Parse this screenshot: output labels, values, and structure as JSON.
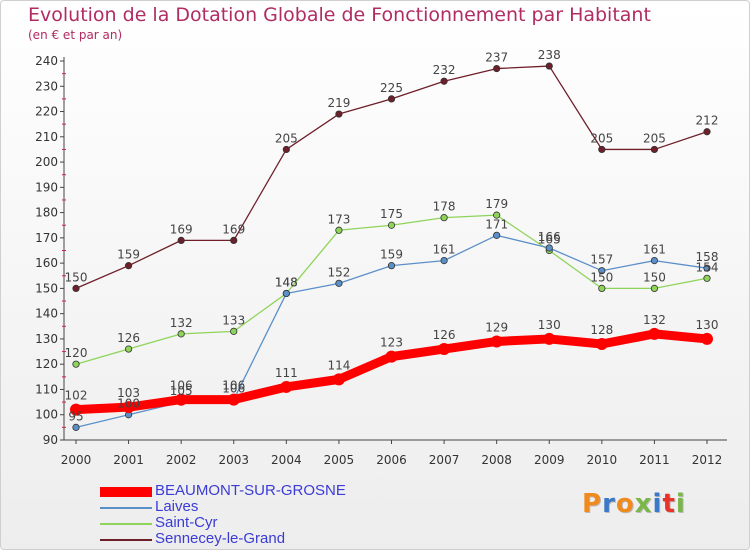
{
  "header": {
    "title": "Evolution de la Dotation Globale de Fonctionnement par Habitant",
    "subtitle": "(en € et par an)"
  },
  "logo": {
    "text": "Proxiti",
    "colors": [
      "#f08a1c",
      "#3a78c8",
      "#f08a1c",
      "#7ab648",
      "#3a78c8",
      "#e8332a",
      "#7ab648"
    ]
  },
  "chart_data": {
    "type": "line",
    "x": [
      "2000",
      "2001",
      "2002",
      "2003",
      "2004",
      "2005",
      "2006",
      "2007",
      "2008",
      "2009",
      "2010",
      "2011",
      "2012"
    ],
    "ylim": [
      90,
      240
    ],
    "yticks": [
      90,
      100,
      110,
      120,
      130,
      140,
      150,
      160,
      170,
      180,
      190,
      200,
      210,
      220,
      230,
      240
    ],
    "grid": false,
    "legend_position": "bottom-left",
    "series": [
      {
        "name": "BEAUMONT-SUR-GROSNE",
        "color": "#ff0000",
        "values": [
          102,
          103,
          106,
          106,
          111,
          114,
          123,
          126,
          129,
          130,
          128,
          132,
          130
        ]
      },
      {
        "name": "Laives",
        "color": "#5b8fc8",
        "values": [
          95,
          100,
          105,
          106,
          148,
          152,
          159,
          161,
          171,
          166,
          157,
          161,
          158
        ]
      },
      {
        "name": "Saint-Cyr",
        "color": "#8fd45a",
        "values": [
          120,
          126,
          132,
          133,
          148,
          173,
          175,
          178,
          179,
          165,
          150,
          150,
          154
        ]
      },
      {
        "name": "Sennecey-le-Grand",
        "color": "#6e1f2a",
        "values": [
          150,
          159,
          169,
          169,
          205,
          219,
          225,
          232,
          237,
          238,
          205,
          205,
          212
        ]
      }
    ]
  }
}
